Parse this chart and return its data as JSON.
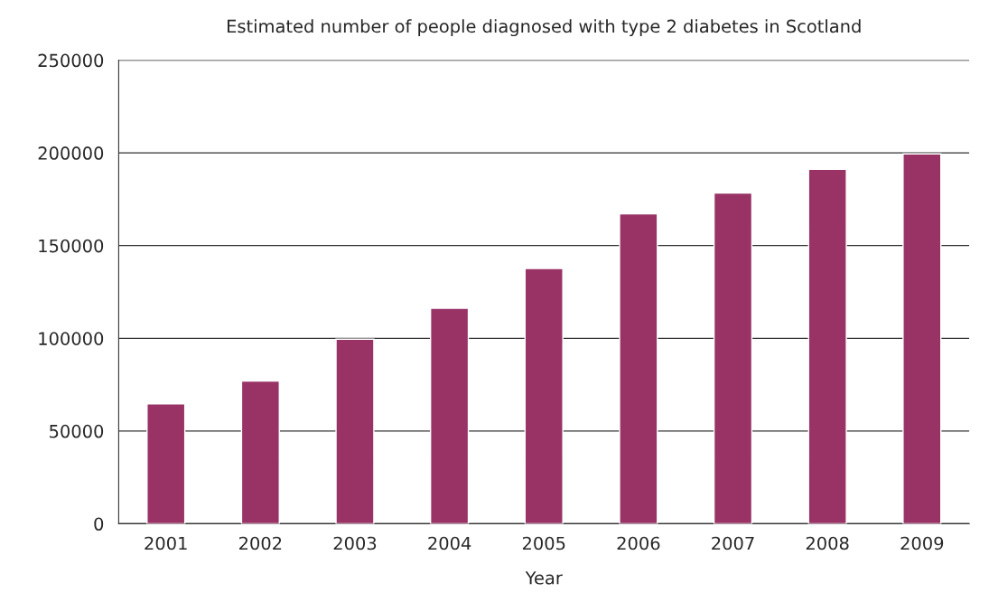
{
  "chart_data": {
    "type": "bar",
    "title": "Estimated number of people diagnosed with type 2 diabetes in Scotland",
    "xlabel": "Year",
    "categories": [
      "2001",
      "2002",
      "2003",
      "2004",
      "2005",
      "2006",
      "2007",
      "2008",
      "2009"
    ],
    "values": [
      64700,
      77000,
      99500,
      116200,
      137700,
      167200,
      178400,
      191200,
      199500
    ],
    "color": "#993366",
    "ylim": [
      0,
      250000
    ],
    "yticks": [
      0,
      50000,
      100000,
      150000,
      200000,
      250000
    ],
    "grid": "y",
    "legend": false
  }
}
